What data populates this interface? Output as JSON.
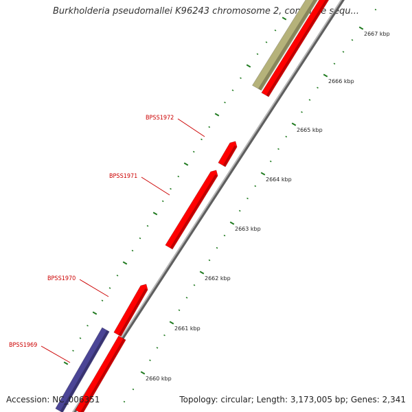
{
  "title": "Burkholderia pseudomallei K96243 chromosome 2, complete sequ...",
  "footer": {
    "accession": "Accession: NC_006351",
    "summary": "Topology: circular; Length: 3,173,005 bp; Genes: 2,341"
  },
  "colors": {
    "gene_red": "#ff0000",
    "gene_blue": "#4b4596",
    "gene_olive": "#b5b27a",
    "backbone": "#888888",
    "tick_green": "#1f7a1f",
    "label_red": "#cc0000"
  },
  "scale_labels": [
    "2660 kbp",
    "2661 kbp",
    "2662 kbp",
    "2663 kbp",
    "2664 kbp",
    "2665 kbp",
    "2666 kbp",
    "2667 kbp"
  ],
  "gene_labels": [
    "BPSS1969",
    "BPSS1970",
    "BPSS1971",
    "BPSS1972"
  ]
}
